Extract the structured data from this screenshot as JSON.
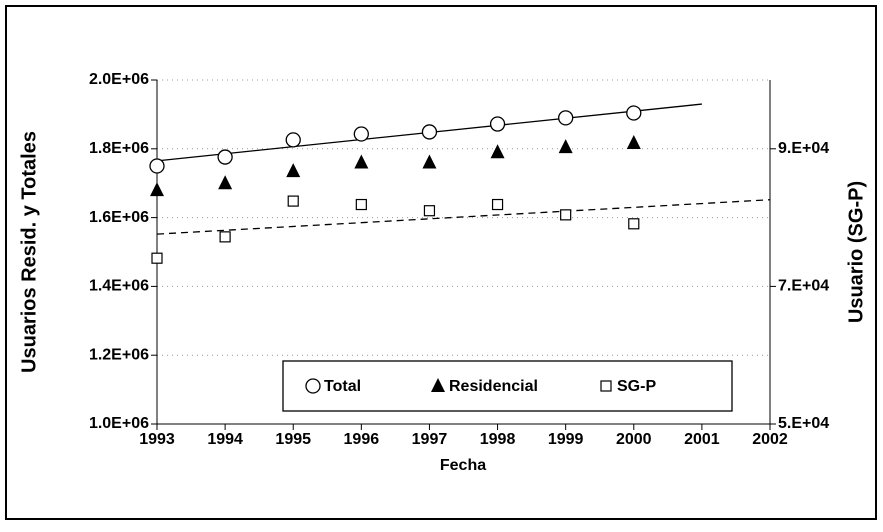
{
  "chart_data": {
    "type": "scatter",
    "x_label": "Fecha",
    "y_label": "Usuarios Resid. y Totales",
    "y2_label": "Usuario (SG-P)",
    "xlim": [
      1993,
      2002
    ],
    "xticks": [
      1993,
      1994,
      1995,
      1996,
      1997,
      1998,
      1999,
      2000,
      2001,
      2002
    ],
    "ylim": [
      1000000,
      2000000
    ],
    "yticks": [
      {
        "value": 1000000,
        "label": "1.0E+06"
      },
      {
        "value": 1200000,
        "label": "1.2E+06"
      },
      {
        "value": 1400000,
        "label": "1.4E+06"
      },
      {
        "value": 1600000,
        "label": "1.6E+06"
      },
      {
        "value": 1800000,
        "label": "1.8E+06"
      },
      {
        "value": 2000000,
        "label": "2.0E+06"
      }
    ],
    "y2lim": [
      50000,
      100000
    ],
    "y2ticks": [
      {
        "value": 50000,
        "label": "5.E+04"
      },
      {
        "value": 70000,
        "label": "7.E+04"
      },
      {
        "value": 90000,
        "label": "9.E+04"
      }
    ],
    "grid": true,
    "series": [
      {
        "name": "Total",
        "marker": "circle",
        "color": "#000000",
        "x": [
          1993,
          1994,
          1995,
          1996,
          1997,
          1998,
          1999,
          2000
        ],
        "values": [
          1750000,
          1776000,
          1826000,
          1843000,
          1849000,
          1872000,
          1890000,
          1904000
        ]
      },
      {
        "name": "Residencial",
        "marker": "triangle",
        "color": "#000000",
        "x": [
          1993,
          1994,
          1995,
          1996,
          1997,
          1998,
          1999,
          2000
        ],
        "values": [
          1680000,
          1700000,
          1735000,
          1760000,
          1760000,
          1790000,
          1805000,
          1817000
        ]
      },
      {
        "name": "SG-P",
        "marker": "square",
        "color": "#000000",
        "axis": "y2",
        "x": [
          1993,
          1994,
          1995,
          1996,
          1997,
          1998,
          1999,
          2000
        ],
        "values": [
          74100,
          77200,
          82400,
          81900,
          81000,
          81900,
          80400,
          79100
        ]
      }
    ],
    "trendlines": [
      {
        "dashed": false,
        "x": [
          1993,
          2001
        ],
        "values": [
          1765000,
          1930000
        ]
      },
      {
        "dashed": true,
        "axis": "y2",
        "x": [
          1993,
          2002
        ],
        "values": [
          77600,
          82600
        ]
      }
    ]
  }
}
